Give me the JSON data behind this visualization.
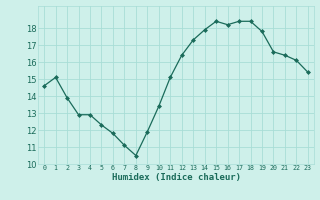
{
  "x": [
    0,
    1,
    2,
    3,
    4,
    5,
    6,
    7,
    8,
    9,
    10,
    11,
    12,
    13,
    14,
    15,
    16,
    17,
    18,
    19,
    20,
    21,
    22,
    23
  ],
  "y": [
    14.6,
    15.1,
    13.9,
    12.9,
    12.9,
    12.3,
    11.8,
    11.1,
    10.5,
    11.9,
    13.4,
    15.1,
    16.4,
    17.3,
    17.9,
    18.4,
    18.2,
    18.4,
    18.4,
    17.8,
    16.6,
    16.4,
    16.1,
    15.4
  ],
  "xlabel": "Humidex (Indice chaleur)",
  "xlim": [
    -0.5,
    23.5
  ],
  "ylim": [
    10,
    19
  ],
  "yticks": [
    10,
    11,
    12,
    13,
    14,
    15,
    16,
    17,
    18
  ],
  "xtick_labels": [
    "0",
    "1",
    "2",
    "3",
    "4",
    "5",
    "6",
    "7",
    "8",
    "9",
    "10",
    "11",
    "12",
    "13",
    "14",
    "15",
    "16",
    "17",
    "18",
    "19",
    "20",
    "21",
    "22",
    "23"
  ],
  "line_color": "#1a6b5a",
  "marker": "D",
  "marker_size": 2,
  "bg_color": "#cef0ea",
  "grid_color": "#a8ddd6",
  "label_color": "#1a6b5a",
  "tick_color": "#1a6b5a"
}
